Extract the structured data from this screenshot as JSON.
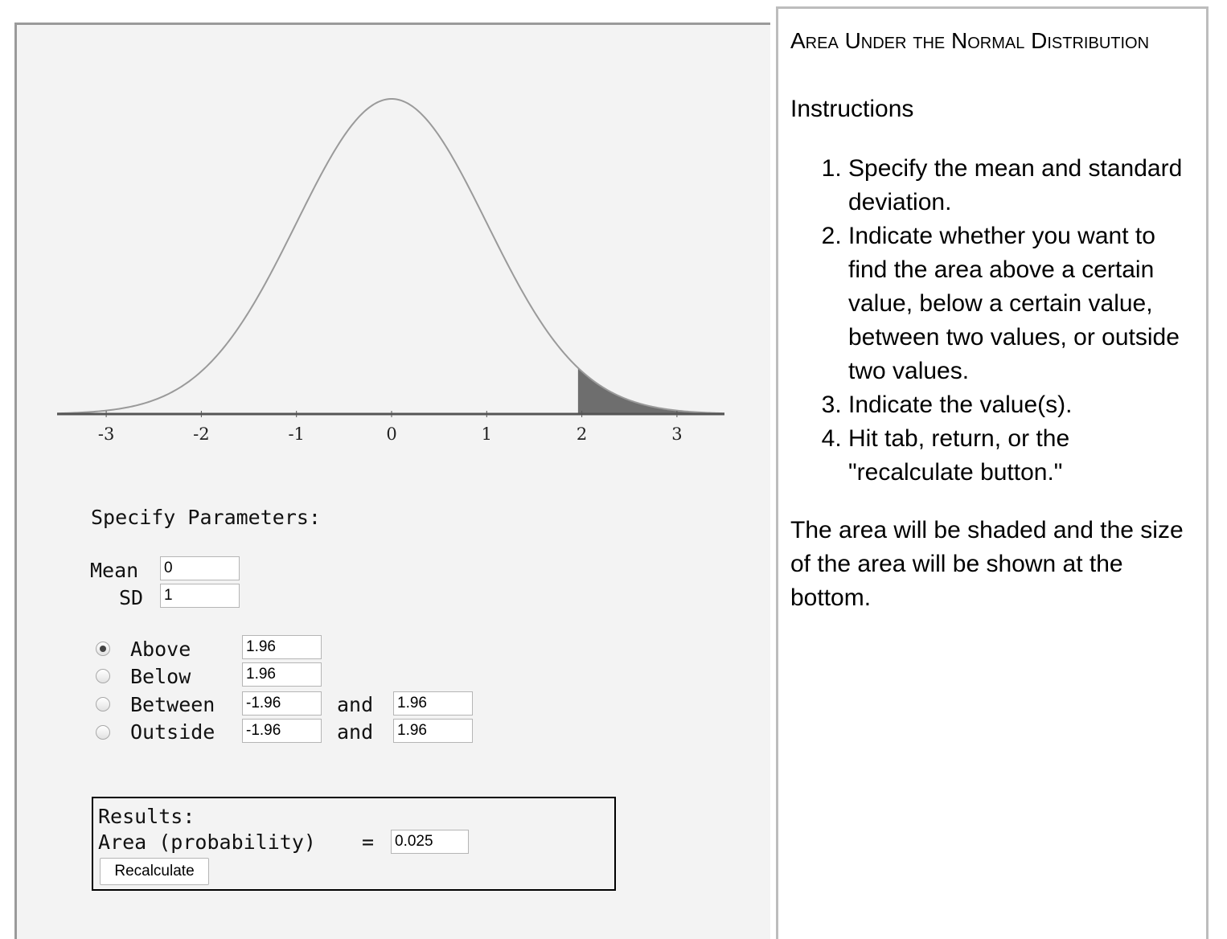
{
  "chart_data": {
    "type": "area",
    "distribution": "normal",
    "mean": 0,
    "sd": 1,
    "x_ticks": [
      "-3",
      "-2",
      "-1",
      "0",
      "1",
      "2",
      "3"
    ],
    "xlim": [
      -3.5,
      3.5
    ],
    "shaded_region": "above",
    "shaded_from": 1.96,
    "shaded_to": 3.5,
    "grid": false,
    "colors": {
      "curve": "#9a9a9a",
      "shade": "#6e6e6e",
      "axis": "#555555"
    }
  },
  "params": {
    "heading": "Specify Parameters:",
    "mean_label": "Mean",
    "mean_value": "0",
    "sd_label": "SD",
    "sd_value": "1"
  },
  "options": {
    "above": {
      "label": "Above",
      "value": "1.96",
      "checked": true
    },
    "below": {
      "label": "Below",
      "value": "1.96",
      "checked": false
    },
    "between": {
      "label": "Between",
      "low": "-1.96",
      "and": "and",
      "high": "1.96",
      "checked": false
    },
    "outside": {
      "label": "Outside",
      "low": "-1.96",
      "and": "and",
      "high": "1.96",
      "checked": false
    }
  },
  "results": {
    "heading": "Results:",
    "area_label": "Area (probability)",
    "equals": "=",
    "area_value": "0.025",
    "button_label": "Recalculate"
  },
  "instructions": {
    "title": "Area Under the Normal Distribution",
    "heading": "Instructions",
    "steps": [
      "Specify the mean and standard deviation.",
      "Indicate whether you want to find the area above a certain value, below a certain value, between two values, or outside two values.",
      "Indicate the value(s).",
      "Hit tab, return, or the \"recalculate button.\""
    ],
    "note": "The area will be shaded and the size of the area will be shown at the bottom."
  }
}
